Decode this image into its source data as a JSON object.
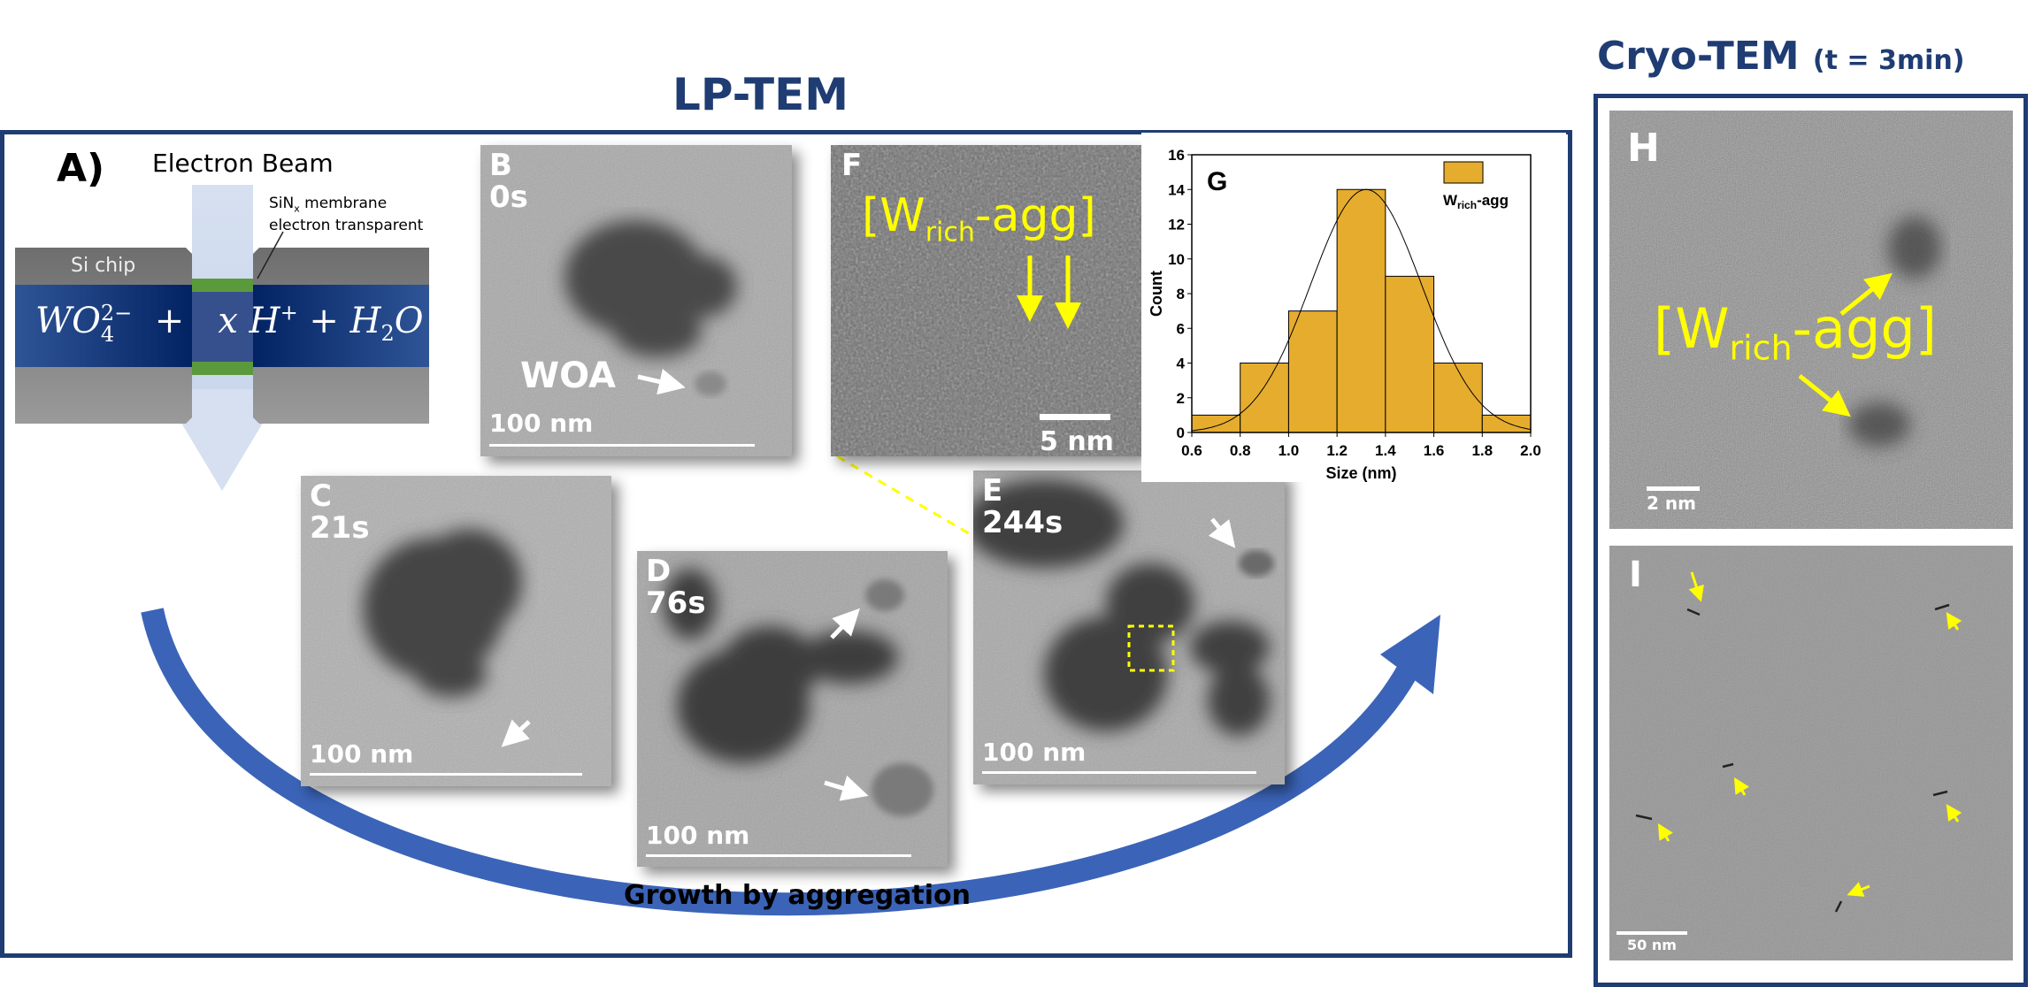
{
  "titles": {
    "lp_tem": "LP-TEM",
    "cryo_tem": "Cryo-TEM",
    "cryo_time": "(t = 3min)"
  },
  "colors": {
    "frame": "#1f3c73",
    "bar_fill": "#e6ac2e",
    "annotation": "#ffff00",
    "growth_arrow": "#3b64b8"
  },
  "panel_a": {
    "label": "A)",
    "beam": "Electron Beam",
    "membrane_main": "SiN",
    "membrane_sub": "x",
    "membrane_rest": " membrane",
    "membrane_line2": "electron transparent",
    "chip": "Si chip",
    "equation": {
      "wo": "WO",
      "wo_sub": "4",
      "wo_sup": "2−",
      "plus1": "+",
      "xh": "x H",
      "h_sup": "+",
      "plus2": "+ H",
      "h2_sub": "2",
      "o": "O"
    }
  },
  "panel_b": {
    "label": "B",
    "time": "0s",
    "scale": "100 nm",
    "annotation": "WOA"
  },
  "panel_c": {
    "label": "C",
    "time": "21s",
    "scale": "100 nm"
  },
  "panel_d": {
    "label": "D",
    "time": "76s",
    "scale": "100 nm"
  },
  "panel_e": {
    "label": "E",
    "time": "244s",
    "scale": "100 nm"
  },
  "panel_f": {
    "label": "F",
    "ann_open": "[W",
    "ann_sub": "rich",
    "ann_close": "-agg]",
    "scale": "5 nm"
  },
  "panel_h": {
    "label": "H",
    "ann_open": "[W",
    "ann_sub": "rich",
    "ann_close": "-agg]",
    "scale": "2 nm"
  },
  "panel_i": {
    "label": "I",
    "scale": "50 nm"
  },
  "growth_label": "Growth by aggregation",
  "chart_data": {
    "type": "bar",
    "panel_label": "G",
    "bin_edges": [
      0.6,
      0.8,
      1.0,
      1.2,
      1.4,
      1.6,
      1.8,
      2.0
    ],
    "values": [
      1,
      4,
      7,
      14,
      9,
      4,
      1
    ],
    "fit": {
      "type": "gaussian",
      "peak": 14,
      "center": 1.32,
      "sigma": 0.23
    },
    "xlabel": "Size (nm)",
    "ylabel": "Count",
    "xlim": [
      0.6,
      2.0
    ],
    "ylim": [
      0,
      16
    ],
    "xticks": [
      "0.6",
      "0.8",
      "1.0",
      "1.2",
      "1.4",
      "1.6",
      "1.8",
      "2.0"
    ],
    "yticks": [
      "0",
      "2",
      "4",
      "6",
      "8",
      "10",
      "12",
      "14",
      "16"
    ],
    "legend": {
      "main": "W",
      "sub": "rich",
      "rest": "-agg",
      "placement": "top-right"
    },
    "grid": false
  }
}
